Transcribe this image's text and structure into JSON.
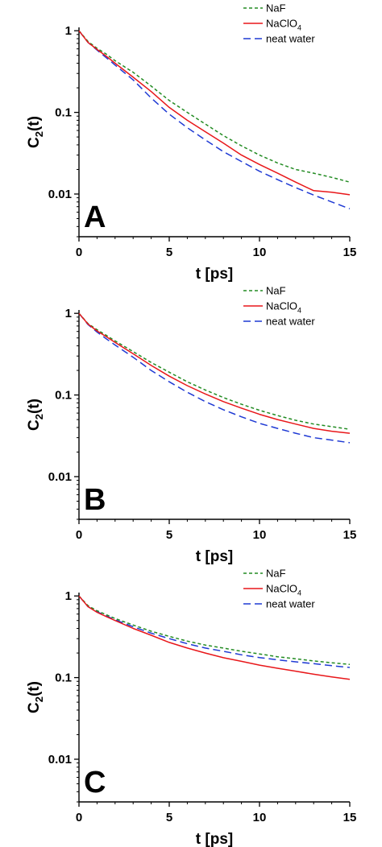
{
  "chart_data": [
    {
      "type": "line",
      "panel_label": "A",
      "xlabel": "t [ps]",
      "ylabel": "C2(t)",
      "ylabel_main": "C",
      "ylabel_sub": "2",
      "ylabel_tail": "(t)",
      "x_scale": "linear",
      "y_scale": "log",
      "xlim": [
        0,
        15
      ],
      "ylim": [
        0.003,
        1.1
      ],
      "x_ticks": [
        0,
        5,
        10,
        15
      ],
      "x_tick_labels": [
        "0",
        "5",
        "10",
        "15"
      ],
      "y_ticks": [
        1,
        0.1,
        0.01
      ],
      "y_tick_labels": [
        "1",
        "0.1",
        "0.01"
      ],
      "grid": false,
      "legend_position": "top-right",
      "x": [
        0,
        0.5,
        1,
        1.5,
        2,
        3,
        4,
        5,
        6,
        7,
        8,
        9,
        10,
        11,
        12,
        13,
        14,
        15
      ],
      "series": [
        {
          "name": "NaF",
          "name_sub": "",
          "color": "#228b22",
          "dash": "4 3",
          "values": [
            1.0,
            0.74,
            0.61,
            0.52,
            0.43,
            0.31,
            0.21,
            0.14,
            0.1,
            0.072,
            0.052,
            0.039,
            0.03,
            0.024,
            0.02,
            0.018,
            0.016,
            0.014
          ]
        },
        {
          "name": "NaClO",
          "name_sub": "4",
          "color": "#e8171a",
          "dash": "",
          "values": [
            1.0,
            0.72,
            0.59,
            0.49,
            0.4,
            0.27,
            0.18,
            0.115,
            0.08,
            0.058,
            0.042,
            0.03,
            0.023,
            0.018,
            0.014,
            0.011,
            0.0105,
            0.0098
          ]
        },
        {
          "name": "neat water",
          "name_sub": "",
          "color": "#1f3ad4",
          "dash": "9 5",
          "values": [
            1.0,
            0.72,
            0.58,
            0.47,
            0.38,
            0.25,
            0.15,
            0.095,
            0.065,
            0.046,
            0.033,
            0.025,
            0.019,
            0.015,
            0.012,
            0.0097,
            0.008,
            0.0066
          ]
        }
      ]
    },
    {
      "type": "line",
      "panel_label": "B",
      "xlabel": "t [ps]",
      "ylabel": "C2(t)",
      "ylabel_main": "C",
      "ylabel_sub": "2",
      "ylabel_tail": "(t)",
      "x_scale": "linear",
      "y_scale": "log",
      "xlim": [
        0,
        15
      ],
      "ylim": [
        0.003,
        1.1
      ],
      "x_ticks": [
        0,
        5,
        10,
        15
      ],
      "x_tick_labels": [
        "0",
        "5",
        "10",
        "15"
      ],
      "y_ticks": [
        1,
        0.1,
        0.01
      ],
      "y_tick_labels": [
        "1",
        "0.1",
        "0.01"
      ],
      "grid": false,
      "legend_position": "top-right",
      "x": [
        0,
        0.5,
        1,
        1.5,
        2,
        3,
        4,
        5,
        6,
        7,
        8,
        9,
        10,
        11,
        12,
        13,
        14,
        15
      ],
      "series": [
        {
          "name": "NaF",
          "name_sub": "",
          "color": "#228b22",
          "dash": "4 3",
          "values": [
            1.0,
            0.75,
            0.63,
            0.54,
            0.46,
            0.34,
            0.25,
            0.19,
            0.145,
            0.115,
            0.093,
            0.077,
            0.065,
            0.056,
            0.049,
            0.044,
            0.041,
            0.038
          ]
        },
        {
          "name": "NaClO",
          "name_sub": "4",
          "color": "#e8171a",
          "dash": "",
          "values": [
            1.0,
            0.74,
            0.61,
            0.52,
            0.44,
            0.32,
            0.23,
            0.17,
            0.13,
            0.103,
            0.083,
            0.069,
            0.058,
            0.05,
            0.044,
            0.039,
            0.036,
            0.034
          ]
        },
        {
          "name": "neat water",
          "name_sub": "",
          "color": "#1f3ad4",
          "dash": "9 5",
          "values": [
            1.0,
            0.73,
            0.59,
            0.49,
            0.41,
            0.29,
            0.2,
            0.145,
            0.108,
            0.083,
            0.066,
            0.054,
            0.045,
            0.039,
            0.034,
            0.03,
            0.028,
            0.026
          ]
        }
      ]
    },
    {
      "type": "line",
      "panel_label": "C",
      "xlabel": "t [ps]",
      "ylabel": "C2(t)",
      "ylabel_main": "C",
      "ylabel_sub": "2",
      "ylabel_tail": "(t)",
      "x_scale": "linear",
      "y_scale": "log",
      "xlim": [
        0,
        15
      ],
      "ylim": [
        0.003,
        1.1
      ],
      "x_ticks": [
        0,
        5,
        10,
        15
      ],
      "x_tick_labels": [
        "0",
        "5",
        "10",
        "15"
      ],
      "y_ticks": [
        1,
        0.1,
        0.01
      ],
      "y_tick_labels": [
        "1",
        "0.1",
        "0.01"
      ],
      "grid": false,
      "legend_position": "top-right",
      "x": [
        0,
        0.5,
        1,
        1.5,
        2,
        3,
        4,
        5,
        6,
        7,
        8,
        9,
        10,
        11,
        12,
        13,
        14,
        15
      ],
      "series": [
        {
          "name": "NaF",
          "name_sub": "",
          "color": "#228b22",
          "dash": "4 3",
          "values": [
            1.0,
            0.76,
            0.66,
            0.59,
            0.53,
            0.44,
            0.37,
            0.32,
            0.28,
            0.25,
            0.23,
            0.21,
            0.195,
            0.18,
            0.17,
            0.16,
            0.152,
            0.145
          ]
        },
        {
          "name": "NaClO",
          "name_sub": "4",
          "color": "#e8171a",
          "dash": "",
          "values": [
            1.0,
            0.74,
            0.63,
            0.56,
            0.5,
            0.4,
            0.33,
            0.27,
            0.23,
            0.2,
            0.175,
            0.158,
            0.142,
            0.13,
            0.12,
            0.11,
            0.102,
            0.095
          ]
        },
        {
          "name": "neat water",
          "name_sub": "",
          "color": "#1f3ad4",
          "dash": "9 5",
          "values": [
            1.0,
            0.74,
            0.64,
            0.57,
            0.51,
            0.42,
            0.35,
            0.3,
            0.26,
            0.23,
            0.21,
            0.19,
            0.176,
            0.165,
            0.156,
            0.148,
            0.14,
            0.133
          ]
        }
      ]
    }
  ]
}
